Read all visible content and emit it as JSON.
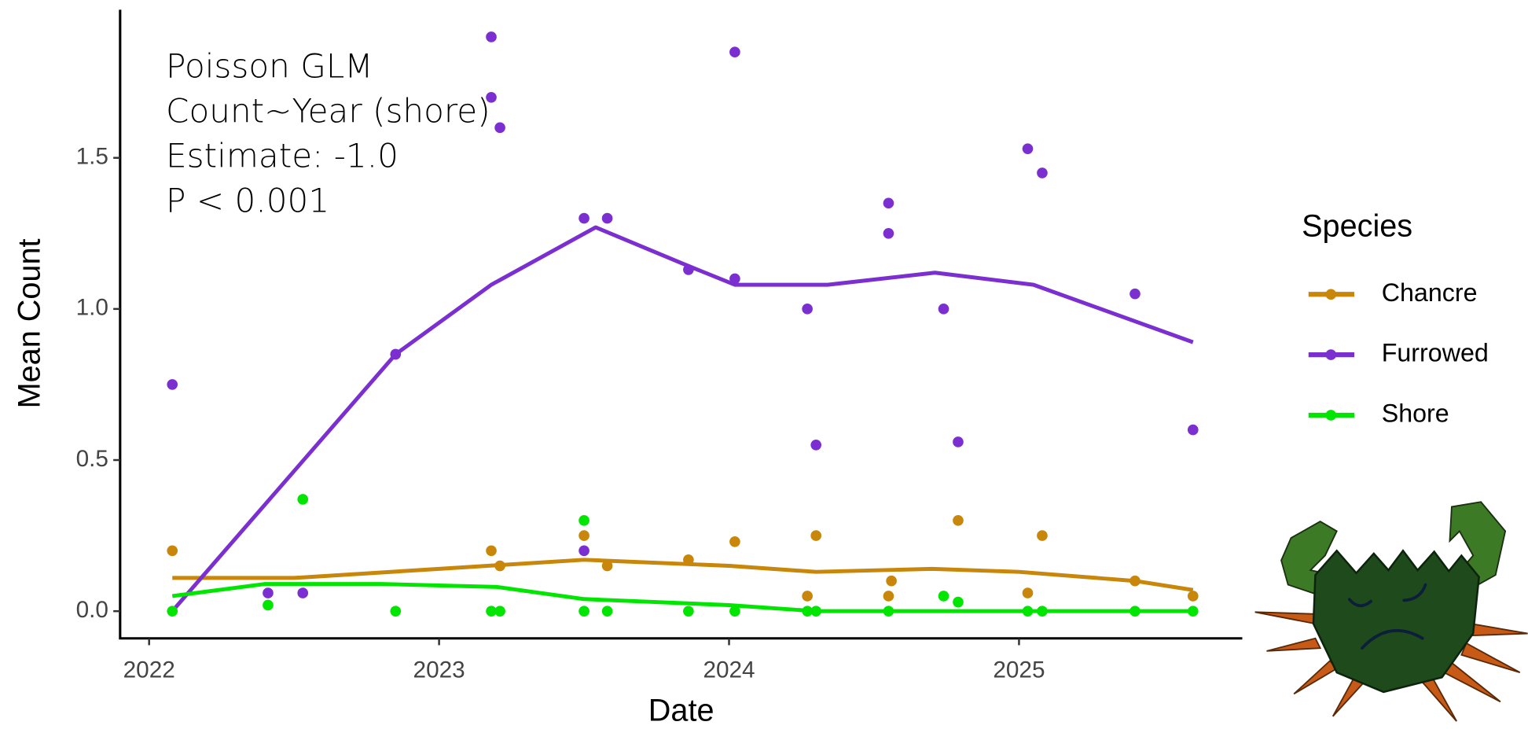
{
  "chart_data": {
    "type": "scatter",
    "x_label": "Date",
    "y_label": "Mean Count",
    "annotations": [
      "Poisson GLM",
      "Count~Year (shore)",
      "Estimate: -1.0",
      "P < 0.001"
    ],
    "legend_title": "Species",
    "legend_position": "right",
    "xlim": [
      2021.9,
      2025.77
    ],
    "ylim": [
      -0.09,
      1.99
    ],
    "xticks": [
      2022,
      2023,
      2024,
      2025
    ],
    "yticks": [
      {
        "value": 0,
        "label": "0.0"
      },
      0.5,
      {
        "value": 1,
        "label": "1.0"
      },
      1.5
    ],
    "grid": false,
    "series": [
      {
        "name": "Chancre",
        "color": "#c8860a",
        "x": [
          2022.08,
          2023.18,
          2023.21,
          2023.5,
          2023.58,
          2023.86,
          2024.02,
          2024.27,
          2024.3,
          2024.55,
          2024.56,
          2024.79,
          2025.03,
          2025.08,
          2025.4,
          2025.6
        ],
        "values": [
          0.2,
          0.2,
          0.15,
          0.25,
          0.15,
          0.17,
          0.23,
          0.05,
          0.25,
          0.05,
          0.1,
          0.3,
          0.06,
          0.25,
          0.1,
          0.05
        ],
        "trend_x": [
          2022.08,
          2022.5,
          2023.0,
          2023.5,
          2024.0,
          2024.3,
          2024.7,
          2025.0,
          2025.4,
          2025.6
        ],
        "trend": [
          0.11,
          0.11,
          0.14,
          0.17,
          0.15,
          0.13,
          0.14,
          0.13,
          0.1,
          0.07
        ]
      },
      {
        "name": "Furrowed",
        "color": "#7b2fd0",
        "x": [
          2022.08,
          2022.41,
          2022.53,
          2022.85,
          2023.18,
          2023.18,
          2023.21,
          2023.5,
          2023.58,
          2023.5,
          2023.86,
          2024.02,
          2024.02,
          2024.27,
          2024.3,
          2024.55,
          2024.55,
          2024.74,
          2024.79,
          2025.03,
          2025.08,
          2025.4,
          2025.6
        ],
        "values": [
          0.75,
          0.06,
          0.06,
          0.85,
          1.9,
          1.7,
          1.6,
          1.3,
          1.3,
          0.2,
          1.13,
          1.85,
          1.1,
          1.0,
          0.55,
          1.25,
          1.35,
          1.0,
          0.56,
          1.53,
          1.45,
          1.05,
          0.6
        ],
        "trend_x": [
          2022.08,
          2022.85,
          2023.18,
          2023.54,
          2023.84,
          2024.02,
          2024.34,
          2024.71,
          2025.05,
          2025.6
        ],
        "trend": [
          0,
          0.85,
          1.08,
          1.27,
          1.15,
          1.08,
          1.08,
          1.12,
          1.08,
          0.89
        ]
      },
      {
        "name": "Shore",
        "color": "#00e600",
        "x": [
          2022.08,
          2022.41,
          2022.53,
          2022.85,
          2023.18,
          2023.21,
          2023.5,
          2023.5,
          2023.58,
          2023.86,
          2024.02,
          2024.27,
          2024.3,
          2024.55,
          2024.74,
          2024.79,
          2025.03,
          2025.08,
          2025.4,
          2025.6
        ],
        "values": [
          0,
          0.02,
          0.37,
          0,
          0,
          0,
          0.3,
          0,
          0,
          0,
          0,
          0,
          0,
          0,
          0.05,
          0.03,
          0,
          0,
          0,
          0
        ],
        "trend_x": [
          2022.08,
          2022.4,
          2022.8,
          2023.2,
          2023.5,
          2024.0,
          2024.3,
          2025.6
        ],
        "trend": [
          0.05,
          0.09,
          0.09,
          0.08,
          0.04,
          0.02,
          0,
          0
        ]
      }
    ]
  }
}
